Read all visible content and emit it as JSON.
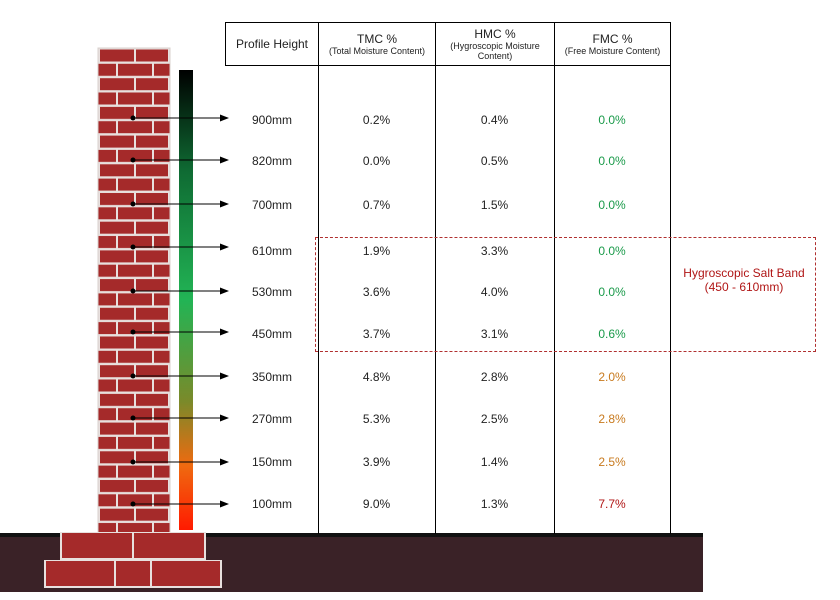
{
  "headers": {
    "profile": "Profile Height",
    "tmc_main": "TMC %",
    "tmc_sub": "(Total Moisture Content)",
    "hmc_main": "HMC %",
    "hmc_sub": "(Hygroscopic Moisture Content)",
    "fmc_main": "FMC %",
    "fmc_sub": "(Free Moisture Content)"
  },
  "rows": [
    {
      "height": "900mm",
      "tmc": "0.2%",
      "hmc": "0.4%",
      "fmc": "0.0%"
    },
    {
      "height": "820mm",
      "tmc": "0.0%",
      "hmc": "0.5%",
      "fmc": "0.0%"
    },
    {
      "height": "700mm",
      "tmc": "0.7%",
      "hmc": "1.5%",
      "fmc": "0.0%"
    },
    {
      "height": "610mm",
      "tmc": "1.9%",
      "hmc": "3.3%",
      "fmc": "0.0%"
    },
    {
      "height": "530mm",
      "tmc": "3.6%",
      "hmc": "4.0%",
      "fmc": "0.0%"
    },
    {
      "height": "450mm",
      "tmc": "3.7%",
      "hmc": "3.1%",
      "fmc": "0.6%"
    },
    {
      "height": "350mm",
      "tmc": "4.8%",
      "hmc": "2.8%",
      "fmc": "2.0%"
    },
    {
      "height": "270mm",
      "tmc": "5.3%",
      "hmc": "2.5%",
      "fmc": "2.8%"
    },
    {
      "height": "150mm",
      "tmc": "3.9%",
      "hmc": "1.4%",
      "fmc": "2.5%"
    },
    {
      "height": "100mm",
      "tmc": "9.0%",
      "hmc": "1.3%",
      "fmc": "7.7%"
    }
  ],
  "band": {
    "title": "Hygroscopic Salt Band",
    "range": "(450 - 610mm)"
  },
  "colors": {
    "brick": "#a52a2a",
    "mortar": "#e8e0de",
    "ground": "#3a2227",
    "fmc_green": "#1a9a4a",
    "fmc_orange": "#c87a1e",
    "fmc_red": "#b01515",
    "band_border": "#b03030"
  }
}
